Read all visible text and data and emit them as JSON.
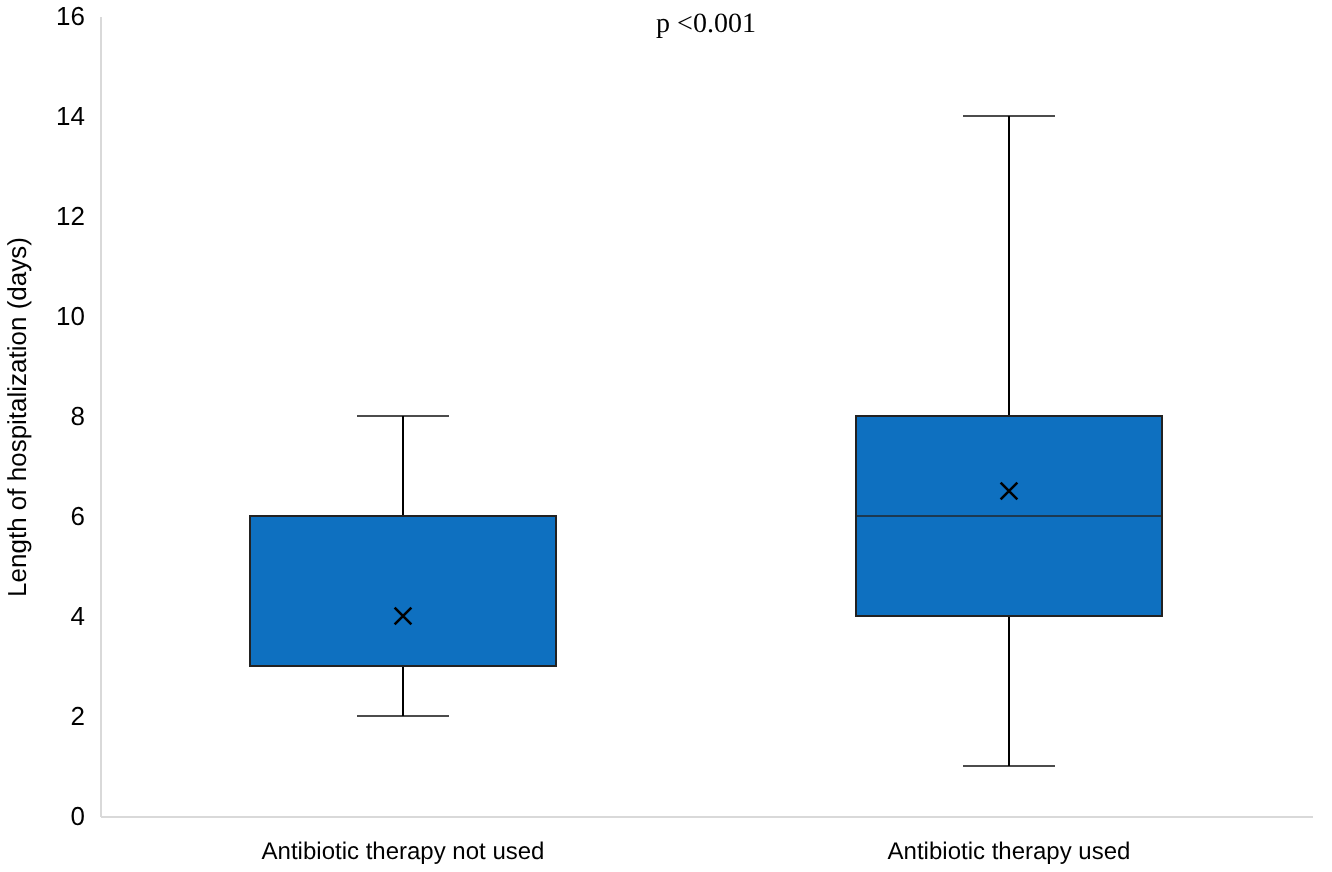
{
  "chart_data": {
    "type": "box",
    "ylabel": "Length of hospitalization (days)",
    "categories": [
      "Antibiotic therapy not used",
      "Antibiotic therapy used"
    ],
    "boxes": [
      {
        "low": 2,
        "q1": 3,
        "median": 3,
        "q3": 6,
        "high": 8,
        "mean": 4
      },
      {
        "low": 1,
        "q1": 4,
        "median": 6,
        "q3": 8,
        "high": 14,
        "mean": 6.5
      }
    ],
    "color": "#0e70c0",
    "ylim": [
      0,
      16
    ],
    "yticks": [
      0,
      2,
      4,
      6,
      8,
      10,
      12,
      14,
      16
    ],
    "grid": false,
    "annotations": [
      "p <0.001"
    ]
  }
}
